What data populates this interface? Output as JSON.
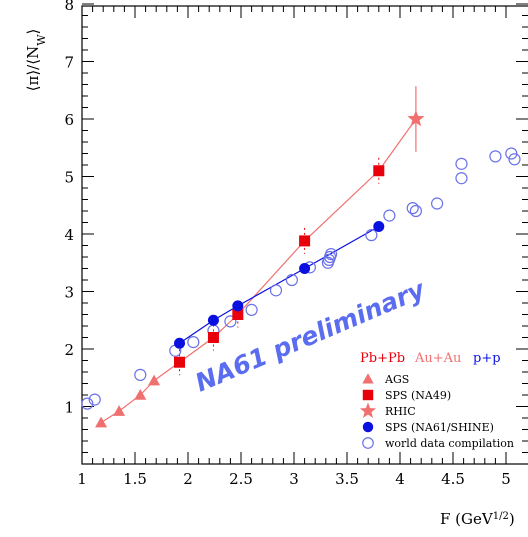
{
  "chart_data": {
    "type": "scatter",
    "xlabel": "F (GeV^{1/2})",
    "ylabel": "⟨π⟩/⟨N_W⟩",
    "xlim": [
      1,
      5
    ],
    "ylim": [
      0,
      8
    ],
    "xticks": [
      "1",
      "1.5",
      "2",
      "2.5",
      "3",
      "3.5",
      "4",
      "4.5",
      "5"
    ],
    "yticks": [
      "1",
      "2",
      "3",
      "4",
      "5",
      "6",
      "7",
      "8"
    ],
    "watermark": "NA61 preliminary",
    "legend": {
      "placement": "bottom-right",
      "systems": [
        {
          "label": "Pb+Pb",
          "color": "#e8000b"
        },
        {
          "label": "Au+Au",
          "color": "#f07070"
        },
        {
          "label": "p+p",
          "color": "#0a10e0"
        }
      ],
      "entries": [
        {
          "label": "AGS",
          "marker": "triangle",
          "color": "#f07070"
        },
        {
          "label": "SPS (NA49)",
          "marker": "square",
          "color": "#e8000b"
        },
        {
          "label": "RHIC",
          "marker": "star",
          "color": "#f07070"
        },
        {
          "label": "SPS (NA61/SHINE)",
          "marker": "circle",
          "color": "#0a10e0"
        },
        {
          "label": "world data compilation",
          "marker": "open-circle",
          "color": "#6b72e8"
        }
      ]
    },
    "series": [
      {
        "name": "AGS",
        "marker": "triangle",
        "color": "#f07070",
        "line": "#f07070",
        "x": [
          1.18,
          1.35,
          1.55,
          1.68
        ],
        "y": [
          0.72,
          0.92,
          1.2,
          1.45
        ]
      },
      {
        "name": "SPS (NA49)",
        "marker": "square",
        "color": "#e8000b",
        "line": "#f07070",
        "x": [
          1.92,
          2.24,
          2.47,
          3.1,
          3.8
        ],
        "y": [
          1.77,
          2.2,
          2.6,
          3.88,
          5.1
        ]
      },
      {
        "name": "RHIC",
        "marker": "star",
        "color": "#f07070",
        "line": "#f07070",
        "x": [
          4.15
        ],
        "y": [
          6.0
        ],
        "err": [
          0.57
        ]
      },
      {
        "name": "SPS (NA61/SHINE)",
        "marker": "circle",
        "color": "#0a10e0",
        "line": "#0a10e0",
        "x": [
          1.92,
          2.24,
          2.47,
          3.1,
          3.8
        ],
        "y": [
          2.1,
          2.5,
          2.75,
          3.4,
          4.13
        ]
      },
      {
        "name": "world data compilation",
        "marker": "open-circle",
        "color": "#6b72e8",
        "x": [
          1.05,
          1.12,
          1.55,
          1.88,
          2.05,
          2.24,
          2.4,
          2.6,
          2.83,
          2.98,
          3.15,
          3.32,
          3.33,
          3.34,
          3.35,
          3.73,
          3.9,
          4.12,
          4.15,
          4.35,
          4.58,
          4.58,
          4.9,
          5.05,
          5.08
        ],
        "y": [
          1.05,
          1.12,
          1.55,
          1.97,
          2.12,
          2.32,
          2.48,
          2.68,
          3.02,
          3.2,
          3.42,
          3.5,
          3.55,
          3.6,
          3.65,
          3.98,
          4.32,
          4.45,
          4.4,
          4.53,
          4.97,
          5.22,
          5.35,
          5.4,
          5.3
        ]
      }
    ]
  }
}
